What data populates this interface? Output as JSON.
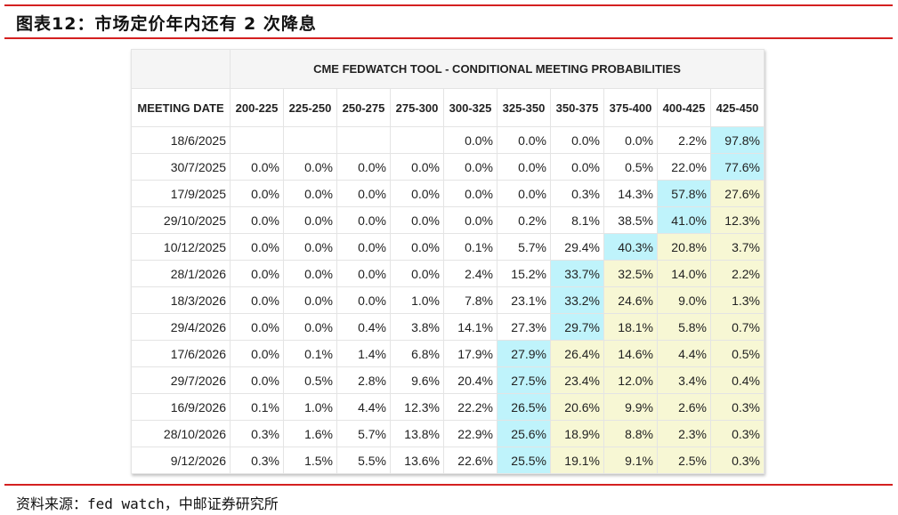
{
  "title": "图表12：市场定价年内还有 2 次降息",
  "source": "资料来源：fed watch，中邮证券研究所",
  "table": {
    "caption": "CME FEDWATCH TOOL - CONDITIONAL MEETING PROBABILITIES",
    "date_header": "MEETING DATE",
    "columns": [
      "200-225",
      "225-250",
      "250-275",
      "275-300",
      "300-325",
      "325-350",
      "350-375",
      "375-400",
      "400-425",
      "425-450"
    ],
    "highlight_colors": {
      "max": "#bff3fb",
      "above_max": "#f7f7d4"
    },
    "rows": [
      {
        "date": "18/6/2025",
        "max_col": 9,
        "values": [
          "",
          "",
          "",
          "",
          "0.0%",
          "0.0%",
          "0.0%",
          "0.0%",
          "2.2%",
          "97.8%"
        ]
      },
      {
        "date": "30/7/2025",
        "max_col": 9,
        "values": [
          "0.0%",
          "0.0%",
          "0.0%",
          "0.0%",
          "0.0%",
          "0.0%",
          "0.0%",
          "0.5%",
          "22.0%",
          "77.6%"
        ]
      },
      {
        "date": "17/9/2025",
        "max_col": 8,
        "values": [
          "0.0%",
          "0.0%",
          "0.0%",
          "0.0%",
          "0.0%",
          "0.0%",
          "0.3%",
          "14.3%",
          "57.8%",
          "27.6%"
        ]
      },
      {
        "date": "29/10/2025",
        "max_col": 8,
        "values": [
          "0.0%",
          "0.0%",
          "0.0%",
          "0.0%",
          "0.0%",
          "0.2%",
          "8.1%",
          "38.5%",
          "41.0%",
          "12.3%"
        ]
      },
      {
        "date": "10/12/2025",
        "max_col": 7,
        "values": [
          "0.0%",
          "0.0%",
          "0.0%",
          "0.0%",
          "0.1%",
          "5.7%",
          "29.4%",
          "40.3%",
          "20.8%",
          "3.7%"
        ]
      },
      {
        "date": "28/1/2026",
        "max_col": 6,
        "values": [
          "0.0%",
          "0.0%",
          "0.0%",
          "0.0%",
          "2.4%",
          "15.2%",
          "33.7%",
          "32.5%",
          "14.0%",
          "2.2%"
        ]
      },
      {
        "date": "18/3/2026",
        "max_col": 6,
        "values": [
          "0.0%",
          "0.0%",
          "0.0%",
          "1.0%",
          "7.8%",
          "23.1%",
          "33.2%",
          "24.6%",
          "9.0%",
          "1.3%"
        ]
      },
      {
        "date": "29/4/2026",
        "max_col": 6,
        "values": [
          "0.0%",
          "0.0%",
          "0.4%",
          "3.8%",
          "14.1%",
          "27.3%",
          "29.7%",
          "18.1%",
          "5.8%",
          "0.7%"
        ]
      },
      {
        "date": "17/6/2026",
        "max_col": 5,
        "values": [
          "0.0%",
          "0.1%",
          "1.4%",
          "6.8%",
          "17.9%",
          "27.9%",
          "26.4%",
          "14.6%",
          "4.4%",
          "0.5%"
        ]
      },
      {
        "date": "29/7/2026",
        "max_col": 5,
        "values": [
          "0.0%",
          "0.5%",
          "2.8%",
          "9.6%",
          "20.4%",
          "27.5%",
          "23.4%",
          "12.0%",
          "3.4%",
          "0.4%"
        ]
      },
      {
        "date": "16/9/2026",
        "max_col": 5,
        "values": [
          "0.1%",
          "1.0%",
          "4.4%",
          "12.3%",
          "22.2%",
          "26.5%",
          "20.6%",
          "9.9%",
          "2.6%",
          "0.3%"
        ]
      },
      {
        "date": "28/10/2026",
        "max_col": 5,
        "values": [
          "0.3%",
          "1.6%",
          "5.7%",
          "13.8%",
          "22.9%",
          "25.6%",
          "18.9%",
          "8.8%",
          "2.3%",
          "0.3%"
        ]
      },
      {
        "date": "9/12/2026",
        "max_col": 5,
        "values": [
          "0.3%",
          "1.5%",
          "5.5%",
          "13.6%",
          "22.6%",
          "25.5%",
          "19.1%",
          "9.1%",
          "2.5%",
          "0.3%"
        ]
      }
    ]
  }
}
